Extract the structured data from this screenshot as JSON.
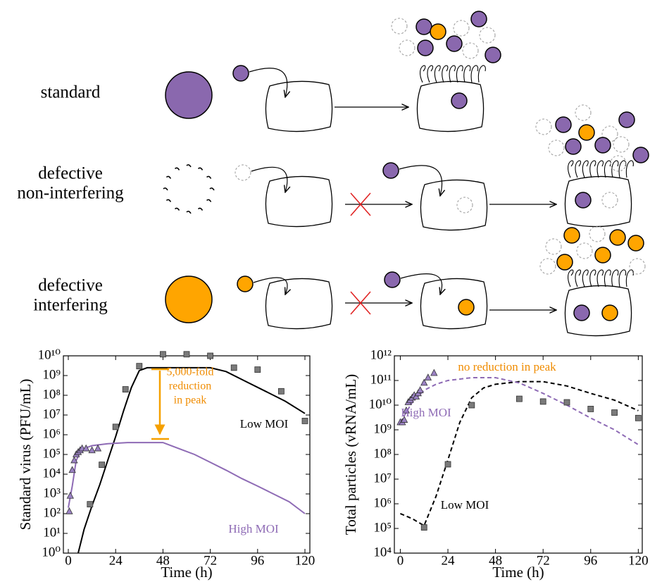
{
  "diagram": {
    "rows": [
      {
        "lines": [
          "standard"
        ]
      },
      {
        "lines": [
          "defective",
          "non-interfering"
        ]
      },
      {
        "lines": [
          "defective",
          "interfering"
        ]
      }
    ]
  },
  "chart_data": [
    {
      "type": "scatter-line",
      "xlabel": "Time (h)",
      "ylabel": "Standard virus (PFU/mL)",
      "xlim": [
        -2.5,
        122.5
      ],
      "xticks": [
        0,
        24,
        48,
        72,
        96,
        120
      ],
      "ylim": [
        1,
        10000000000
      ],
      "log_y": true,
      "yticks": [
        {
          "value": 1,
          "label": "10⁰"
        },
        {
          "value": 10,
          "label": "10¹"
        },
        {
          "value": 100,
          "label": "10²"
        },
        {
          "value": 1000,
          "label": "10³"
        },
        {
          "value": 10000,
          "label": "10⁴"
        },
        {
          "value": 100000,
          "label": "10⁵"
        },
        {
          "value": 1000000,
          "label": "10⁶"
        },
        {
          "value": 10000000,
          "label": "10⁷"
        },
        {
          "value": 100000000,
          "label": "10⁸"
        },
        {
          "value": 1000000000,
          "label": "10⁹"
        },
        {
          "value": 10000000000,
          "label": "10¹⁰"
        }
      ],
      "series": [
        {
          "style": "line",
          "color": "#000000",
          "x": [
            5,
            8,
            12,
            16,
            20,
            24,
            28,
            32,
            36,
            40,
            48,
            60,
            72,
            80,
            90,
            100,
            110,
            120
          ],
          "values": [
            1,
            16,
            250,
            3000,
            50000,
            800000,
            16000000,
            250000000,
            1800000000,
            2500000000,
            2500000000,
            2500000000,
            2500000000,
            1600000000,
            500000000,
            160000000,
            50000000,
            12000000
          ]
        },
        {
          "style": "line",
          "color": "#8e6bb5",
          "x": [
            0,
            2,
            4,
            6,
            8,
            12,
            20,
            30,
            40,
            48,
            56,
            64,
            72,
            80,
            88,
            96,
            104,
            112,
            120
          ],
          "values": [
            200,
            2500,
            50000,
            130000,
            200000,
            280000,
            350000,
            400000,
            400000,
            400000,
            200000,
            100000,
            40000,
            16000,
            6000,
            2500,
            1000,
            400,
            100
          ]
        },
        {
          "style": "points",
          "marker": "square",
          "color": "#7a7a7a",
          "x": [
            11,
            17,
            24,
            29,
            36,
            48,
            60,
            72,
            84,
            96,
            108,
            120
          ],
          "values": [
            300,
            30000,
            2500000,
            200000000,
            3000000000,
            12000000000,
            12000000000,
            10000000000,
            2500000000,
            2000000000,
            160000000,
            5000000
          ]
        },
        {
          "style": "points",
          "marker": "triangle",
          "color": "#9b82c4",
          "x": [
            0.5,
            1,
            2,
            3,
            4,
            5,
            6,
            7,
            9,
            12,
            15
          ],
          "values": [
            130,
            800,
            16000,
            50000,
            100000,
            130000,
            160000,
            200000,
            200000,
            160000,
            200000
          ]
        }
      ],
      "annotations": [
        {
          "lines": [
            "5,000-fold",
            "reduction",
            "in peak"
          ],
          "color": "#f08c00"
        },
        {
          "lines": [
            "Low MOI"
          ],
          "color": "#000000"
        },
        {
          "lines": [
            "High MOI"
          ],
          "color": "#8e6bb5"
        }
      ]
    },
    {
      "type": "scatter-line",
      "xlabel": "Time (h)",
      "ylabel": "Total particles (vRNA/mL)",
      "xlim": [
        -3,
        122
      ],
      "xticks": [
        0,
        24,
        48,
        72,
        96,
        120
      ],
      "ylim": [
        10000,
        1000000000000
      ],
      "log_y": true,
      "yticks": [
        {
          "value": 10000,
          "label": "10⁴"
        },
        {
          "value": 100000,
          "label": "10⁵"
        },
        {
          "value": 1000000,
          "label": "10⁶"
        },
        {
          "value": 10000000,
          "label": "10⁷"
        },
        {
          "value": 100000000,
          "label": "10⁸"
        },
        {
          "value": 1000000000,
          "label": "10⁹"
        },
        {
          "value": 10000000000,
          "label": "10¹⁰"
        },
        {
          "value": 100000000000,
          "label": "10¹¹"
        },
        {
          "value": 1000000000000,
          "label": "10¹²"
        }
      ],
      "series": [
        {
          "style": "line",
          "dash": true,
          "color": "#000000",
          "x": [
            0,
            6,
            12,
            18,
            24,
            30,
            36,
            42,
            48,
            60,
            72,
            84,
            96,
            108,
            120
          ],
          "values": [
            400000,
            250000,
            130000,
            2000000,
            60000000,
            2000000000,
            20000000000,
            50000000000,
            70000000000,
            90000000000,
            90000000000,
            60000000000,
            30000000000,
            16000000000,
            6000000000
          ]
        },
        {
          "style": "line",
          "dash": true,
          "color": "#8e6bb5",
          "x": [
            0,
            6,
            12,
            18,
            24,
            36,
            48,
            60,
            72,
            84,
            96,
            108,
            120
          ],
          "values": [
            2000000000,
            13000000000,
            40000000000,
            70000000000,
            100000000000,
            130000000000,
            130000000000,
            80000000000,
            30000000000,
            10000000000,
            3000000000,
            1000000000,
            250000000
          ]
        },
        {
          "style": "points",
          "marker": "square",
          "color": "#7a7a7a",
          "x": [
            12,
            24,
            36,
            60,
            72,
            84,
            96,
            108,
            120
          ],
          "values": [
            110000,
            40000000,
            10000000000,
            18000000000,
            14000000000,
            13000000000,
            7000000000,
            5000000000,
            3000000000
          ]
        },
        {
          "style": "points",
          "marker": "triangle",
          "color": "#9b82c4",
          "x": [
            0,
            1,
            2,
            3,
            4,
            5,
            6,
            7,
            8,
            9,
            10,
            12,
            14,
            17
          ],
          "values": [
            2000000000,
            2000000000,
            2500000000,
            6000000000,
            13000000000,
            16000000000,
            20000000000,
            25000000000,
            22000000000,
            30000000000,
            40000000000,
            80000000000,
            130000000000,
            200000000000
          ]
        }
      ],
      "annotations": [
        {
          "lines": [
            "no reduction in peak"
          ],
          "color": "#f08c00"
        },
        {
          "lines": [
            "High MOI"
          ],
          "color": "#8e6bb5"
        },
        {
          "lines": [
            "Low MOI"
          ],
          "color": "#000000"
        }
      ]
    }
  ]
}
